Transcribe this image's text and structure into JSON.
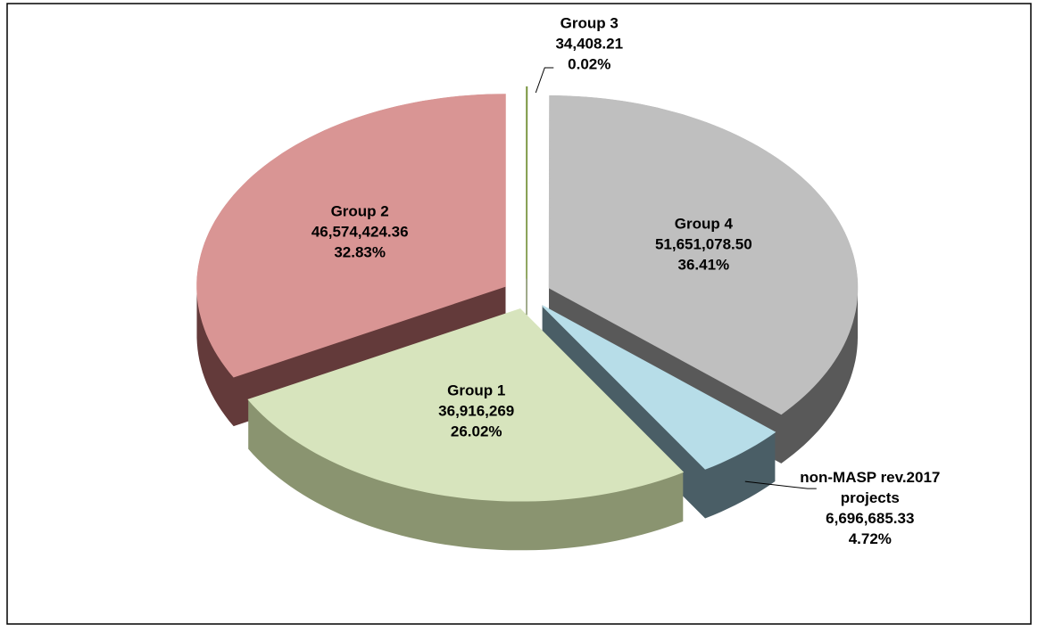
{
  "chart_data": {
    "type": "pie",
    "categories": [
      "Group 3",
      "Group 4",
      "non-MASP rev.2017 projects",
      "Group 1",
      "Group 2"
    ],
    "values": [
      34408.21,
      51651078.5,
      6696685.33,
      36916269,
      46574424.36
    ],
    "value_labels": [
      "34,408.21",
      "51,651,078.50",
      "6,696,685.33",
      "36,916,269",
      "46,574,424.36"
    ],
    "percentages": [
      0.02,
      36.41,
      4.72,
      26.02,
      32.83
    ],
    "percentage_labels": [
      "0.02%",
      "36.41%",
      "4.72%",
      "26.02%",
      "32.83%"
    ],
    "colors": [
      "#77933c",
      "#bfbfbf",
      "#b7dde8",
      "#d7e4bd",
      "#d99594"
    ],
    "side_colors": [
      "#4f6228",
      "#595959",
      "#4a5e66",
      "#8a9470",
      "#633a3a"
    ],
    "three_d": true,
    "exploded": true
  }
}
